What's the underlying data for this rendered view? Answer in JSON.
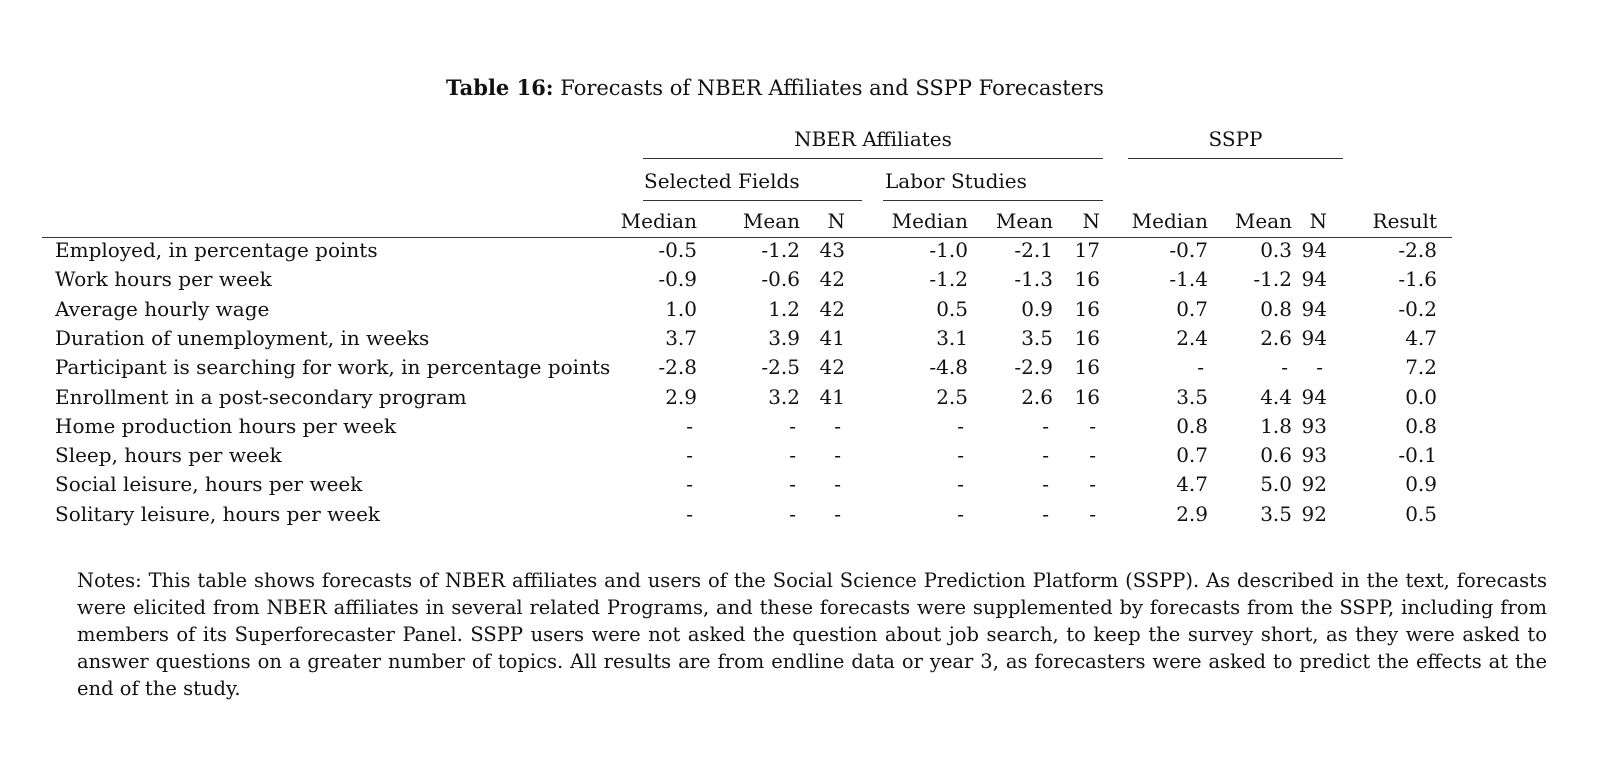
{
  "title": {
    "label": "Table 16:",
    "text": "Forecasts of NBER Affiliates and SSPP Forecasters"
  },
  "groups": {
    "nber": "NBER Affiliates",
    "sspp": "SSPP",
    "selected": "Selected Fields",
    "labor": "Labor Studies"
  },
  "columns": [
    "Median",
    "Mean",
    "N",
    "Median",
    "Mean",
    "N",
    "Median",
    "Mean",
    "N",
    "Result"
  ],
  "rows": [
    {
      "label": "Employed, in percentage points",
      "values": [
        "-0.5",
        "-1.2",
        "43",
        "-1.0",
        "-2.1",
        "17",
        "-0.7",
        "0.3",
        "94",
        "-2.8"
      ]
    },
    {
      "label": "Work hours per week",
      "values": [
        "-0.9",
        "-0.6",
        "42",
        "-1.2",
        "-1.3",
        "16",
        "-1.4",
        "-1.2",
        "94",
        "-1.6"
      ]
    },
    {
      "label": "Average hourly wage",
      "values": [
        "1.0",
        "1.2",
        "42",
        "0.5",
        "0.9",
        "16",
        "0.7",
        "0.8",
        "94",
        "-0.2"
      ]
    },
    {
      "label": "Duration of unemployment, in weeks",
      "values": [
        "3.7",
        "3.9",
        "41",
        "3.1",
        "3.5",
        "16",
        "2.4",
        "2.6",
        "94",
        "4.7"
      ]
    },
    {
      "label": "Participant is searching for work, in percentage points",
      "values": [
        "-2.8",
        "-2.5",
        "42",
        "-4.8",
        "-2.9",
        "16",
        "-",
        "-",
        "-",
        "7.2"
      ]
    },
    {
      "label": "Enrollment in a post-secondary program",
      "values": [
        "2.9",
        "3.2",
        "41",
        "2.5",
        "2.6",
        "16",
        "3.5",
        "4.4",
        "94",
        "0.0"
      ]
    },
    {
      "label": "Home production hours per week",
      "values": [
        "-",
        "-",
        "-",
        "-",
        "-",
        "-",
        "0.8",
        "1.8",
        "93",
        "0.8"
      ]
    },
    {
      "label": "Sleep, hours per week",
      "values": [
        "-",
        "-",
        "-",
        "-",
        "-",
        "-",
        "0.7",
        "0.6",
        "93",
        "-0.1"
      ]
    },
    {
      "label": "Social leisure, hours per week",
      "values": [
        "-",
        "-",
        "-",
        "-",
        "-",
        "-",
        "4.7",
        "5.0",
        "92",
        "0.9"
      ]
    },
    {
      "label": "Solitary leisure, hours per week",
      "values": [
        "-",
        "-",
        "-",
        "-",
        "-",
        "-",
        "2.9",
        "3.5",
        "92",
        "0.5"
      ]
    }
  ],
  "notes": "Notes: This table shows forecasts of NBER affiliates and users of the Social Science Prediction Platform (SSPP). As described in the text, forecasts were elicited from NBER affiliates in several related Programs, and these forecasts were supplemented by forecasts from the SSPP, including from members of its Superforecaster Panel. SSPP users were not asked the question about job search, to keep the survey short, as they were asked to answer questions on a greater number of topics. All results are from endline data or year 3, as forecasters were asked to predict the effects at the end of the study."
}
